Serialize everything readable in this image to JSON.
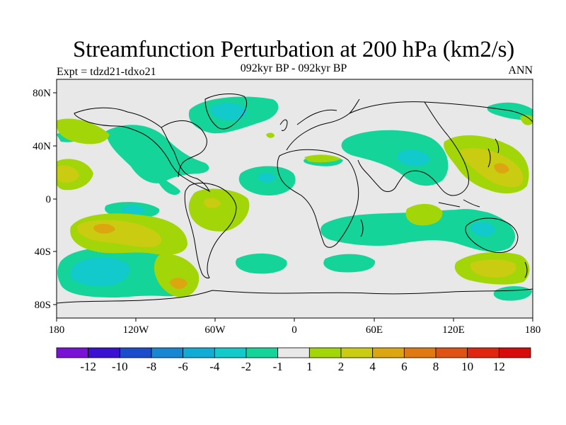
{
  "title": "Streamfunction Perturbation at 200 hPa (km2/s)",
  "subtitle": "092kyr BP - 092kyr BP",
  "left_label": "Expt = tdzd21-tdxo21",
  "right_label": "ANN",
  "lat_ticks": [
    "80N",
    "40N",
    "0",
    "40S",
    "80S"
  ],
  "lon_ticks": [
    "180",
    "120W",
    "60W",
    "0",
    "60E",
    "120E",
    "180"
  ],
  "colorbar": {
    "labels": [
      "-12",
      "-10",
      "-8",
      "-6",
      "-4",
      "-2",
      "-1",
      "1",
      "2",
      "4",
      "6",
      "8",
      "10",
      "12"
    ],
    "colors": [
      "#7a12d6",
      "#3a10d2",
      "#1a4ccc",
      "#1787d4",
      "#10acd6",
      "#12c9cc",
      "#15d49a",
      "#e8e8e8",
      "#a3d608",
      "#c9cc10",
      "#dca610",
      "#e07a10",
      "#e05212",
      "#e0260e",
      "#d80a0a"
    ]
  },
  "map_colors": {
    "background": "#e8e8e8",
    "neg1": "#15d49a",
    "neg2": "#12c9cc",
    "pos1": "#a3d608",
    "pos2": "#c9cc10",
    "pos3": "#dca610",
    "coast": "#000000"
  }
}
